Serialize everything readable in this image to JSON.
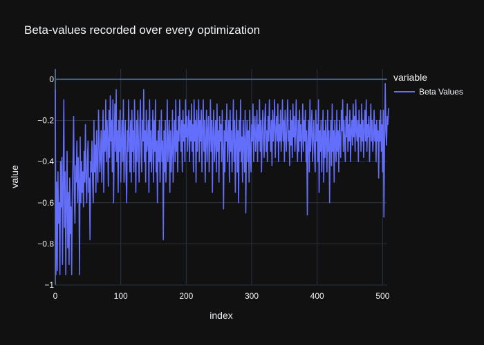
{
  "chart_data": {
    "type": "line",
    "title": "Beta-values recorded over every optimization",
    "xlabel": "index",
    "ylabel": "value",
    "xlim": [
      0,
      507
    ],
    "ylim": [
      -1,
      0.05
    ],
    "x_ticks": [
      0,
      100,
      200,
      300,
      400,
      500
    ],
    "y_ticks": [
      0,
      -0.2,
      -0.4,
      -0.6,
      -0.8,
      -1
    ],
    "y_tick_labels": [
      "0",
      "−0.2",
      "−0.4",
      "−0.6",
      "−0.8",
      "−1"
    ],
    "grid": true,
    "legend_position": "top-right",
    "legend_title": "variable",
    "series": [
      {
        "name": "Beta Values",
        "color": "#636efa",
        "x_start": 0,
        "x_step": 1,
        "values": [
          -0.05,
          -0.95,
          -0.5,
          -0.93,
          -0.45,
          -0.7,
          -0.6,
          -0.95,
          -0.4,
          -0.62,
          -0.38,
          -0.9,
          -0.5,
          -0.1,
          -0.72,
          -0.45,
          -0.95,
          -0.6,
          -0.35,
          -0.82,
          -0.55,
          -0.9,
          -0.48,
          -0.75,
          -0.62,
          -0.95,
          -0.55,
          -0.4,
          -0.18,
          -0.55,
          -0.7,
          -0.42,
          -0.5,
          -0.3,
          -0.6,
          -0.38,
          -0.5,
          -0.95,
          -0.28,
          -0.6,
          -0.4,
          -0.55,
          -0.45,
          -0.62,
          -0.35,
          -0.5,
          -0.22,
          -0.48,
          -0.6,
          -0.4,
          -0.3,
          -0.55,
          -0.48,
          -0.78,
          -0.4,
          -0.45,
          -0.3,
          -0.5,
          -0.6,
          -0.2,
          -0.45,
          -0.32,
          -0.55,
          -0.25,
          -0.4,
          -0.5,
          -0.15,
          -0.3,
          -0.45,
          -0.38,
          -0.25,
          -0.5,
          -0.3,
          -0.15,
          -0.55,
          -0.25,
          -0.35,
          -0.1,
          -0.4,
          -0.2,
          -0.3,
          -0.52,
          -0.15,
          -0.38,
          -0.08,
          -0.3,
          -0.2,
          -0.45,
          -0.1,
          -0.6,
          -0.3,
          -0.12,
          -0.35,
          -0.05,
          -0.4,
          -0.25,
          -0.55,
          -0.2,
          -0.35,
          -0.15,
          -0.5,
          -0.3,
          -0.2,
          -0.4,
          -0.1,
          -0.5,
          -0.3,
          -0.2,
          -0.45,
          -0.6,
          -0.25,
          -0.35,
          -0.1,
          -0.3,
          -0.45,
          -0.2,
          -0.5,
          -0.15,
          -0.35,
          -0.25,
          -0.45,
          -0.1,
          -0.3,
          -0.55,
          -0.2,
          -0.4,
          -0.15,
          -0.3,
          -0.5,
          -0.25,
          -0.1,
          -0.35,
          -0.45,
          -0.2,
          -0.3,
          -0.05,
          -0.4,
          -0.25,
          -0.5,
          -0.15,
          -0.35,
          -0.3,
          -0.2,
          -0.55,
          -0.1,
          -0.4,
          -0.25,
          -0.45,
          -0.3,
          -0.15,
          -0.5,
          -0.2,
          -0.35,
          -0.1,
          -0.45,
          -0.3,
          -0.6,
          -0.25,
          -0.4,
          -0.2,
          -0.5,
          -0.35,
          -0.15,
          -0.4,
          -0.3,
          -0.78,
          -0.25,
          -0.45,
          -0.2,
          -0.5,
          -0.35,
          -0.1,
          -0.4,
          -0.3,
          -0.2,
          -0.55,
          -0.25,
          -0.45,
          -0.35,
          -0.15,
          -0.5,
          -0.3,
          -0.2,
          -0.4,
          -0.1,
          -0.35,
          -0.25,
          -0.45,
          -0.18,
          -0.3,
          -0.1,
          -0.25,
          -0.35,
          -0.2,
          -0.45,
          -0.15,
          -0.3,
          -0.22,
          -0.4,
          -0.1,
          -0.28,
          -0.18,
          -0.35,
          -0.25,
          -0.15,
          -0.4,
          -0.2,
          -0.3,
          -0.12,
          -0.35,
          -0.22,
          -0.45,
          -0.1,
          -0.3,
          -0.2,
          -0.5,
          -0.15,
          -0.35,
          -0.25,
          -0.1,
          -0.4,
          -0.2,
          -0.3,
          -0.15,
          -0.45,
          -0.25,
          -0.1,
          -0.35,
          -0.2,
          -0.5,
          -0.3,
          -0.15,
          -0.4,
          -0.25,
          -0.18,
          -0.45,
          -0.3,
          -0.1,
          -0.35,
          -0.2,
          -0.55,
          -0.25,
          -0.15,
          -0.4,
          -0.3,
          -0.2,
          -0.45,
          -0.12,
          -0.35,
          -0.25,
          -0.5,
          -0.18,
          -0.3,
          -0.22,
          -0.4,
          -0.15,
          -0.35,
          -0.63,
          -0.25,
          -0.45,
          -0.2,
          -0.3,
          -0.12,
          -0.4,
          -0.28,
          -0.2,
          -0.5,
          -0.15,
          -0.35,
          -0.25,
          -0.45,
          -0.3,
          -0.1,
          -0.4,
          -0.2,
          -0.55,
          -0.3,
          -0.15,
          -0.45,
          -0.25,
          -0.6,
          -0.2,
          -0.35,
          -0.1,
          -0.4,
          -0.28,
          -0.5,
          -0.2,
          -0.3,
          -0.45,
          -0.15,
          -0.65,
          -0.3,
          -0.2,
          -0.4,
          -0.25,
          -0.5,
          -0.15,
          -0.35,
          -0.45,
          -0.22,
          -0.3,
          -0.12,
          -0.4,
          -0.25,
          -0.18,
          -0.35,
          -0.28,
          -0.15,
          -0.4,
          -0.22,
          -0.3,
          -0.1,
          -0.35,
          -0.2,
          -0.45,
          -0.25,
          -0.15,
          -0.3,
          -0.38,
          -0.2,
          -0.12,
          -0.35,
          -0.25,
          -0.4,
          -0.18,
          -0.3,
          -0.1,
          -0.25,
          -0.35,
          -0.2,
          -0.42,
          -0.15,
          -0.3,
          -0.22,
          -0.1,
          -0.38,
          -0.25,
          -0.18,
          -0.3,
          -0.12,
          -0.4,
          -0.22,
          -0.3,
          -0.15,
          -0.35,
          -0.25,
          -0.1,
          -0.3,
          -0.2,
          -0.4,
          -0.15,
          -0.28,
          -0.35,
          -0.2,
          -0.1,
          -0.3,
          -0.25,
          -0.42,
          -0.15,
          -0.32,
          -0.2,
          -0.38,
          -0.12,
          -0.28,
          -0.18,
          -0.35,
          -0.25,
          -0.1,
          -0.3,
          -0.4,
          -0.2,
          -0.35,
          -0.15,
          -0.3,
          -0.22,
          -0.4,
          -0.28,
          -0.12,
          -0.35,
          -0.2,
          -0.3,
          -0.15,
          -0.4,
          -0.25,
          -0.66,
          -0.3,
          -0.2,
          -0.45,
          -0.1,
          -0.35,
          -0.25,
          -0.15,
          -0.4,
          -0.28,
          -0.2,
          -0.35,
          -0.45,
          -0.15,
          -0.3,
          -0.22,
          -0.4,
          -0.1,
          -0.55,
          -0.25,
          -0.35,
          -0.2,
          -0.45,
          -0.3,
          -0.15,
          -0.5,
          -0.25,
          -0.38,
          -0.2,
          -0.3,
          -0.45,
          -0.15,
          -0.35,
          -0.25,
          -0.6,
          -0.3,
          -0.2,
          -0.42,
          -0.12,
          -0.35,
          -0.25,
          -0.5,
          -0.2,
          -0.3,
          -0.4,
          -0.15,
          -0.35,
          -0.25,
          -0.45,
          -0.2,
          -0.3,
          -0.38,
          -0.15,
          -0.25,
          -0.1,
          -0.35,
          -0.2,
          -0.3,
          -0.4,
          -0.18,
          -0.28,
          -0.12,
          -0.35,
          -0.22,
          -0.3,
          -0.15,
          -0.4,
          -0.25,
          -0.2,
          -0.32,
          -0.12,
          -0.28,
          -0.18,
          -0.35,
          -0.1,
          -0.25,
          -0.3,
          -0.2,
          -0.4,
          -0.15,
          -0.28,
          -0.22,
          -0.35,
          -0.12,
          -0.3,
          -0.2,
          -0.38,
          -0.25,
          -0.15,
          -0.3,
          -0.1,
          -0.35,
          -0.22,
          -0.28,
          -0.18,
          -0.4,
          -0.25,
          -0.12,
          -0.3,
          -0.2,
          -0.35,
          -0.28,
          -0.15,
          -0.3,
          -0.22,
          -0.4,
          -0.2,
          -0.3,
          -0.25,
          -0.48,
          -0.2,
          -0.3,
          -0.15,
          -0.35,
          -0.22,
          -0.45,
          -0.15,
          -0.67,
          -0.3,
          -0.02,
          -0.25,
          -0.32,
          -0.18,
          -0.22,
          -0.14
        ]
      }
    ]
  }
}
